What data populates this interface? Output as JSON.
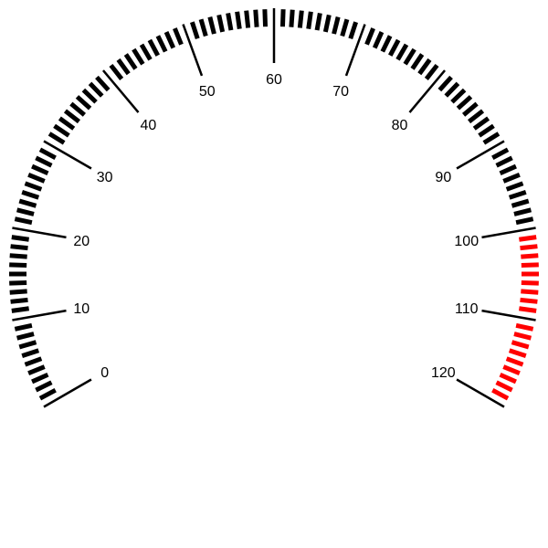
{
  "chart_data": {
    "type": "gauge",
    "min": 0,
    "max": 120,
    "major_step": 10,
    "minor_step": 1,
    "tick_labels": [
      "0",
      "10",
      "20",
      "30",
      "40",
      "50",
      "60",
      "70",
      "80",
      "90",
      "100",
      "110",
      "120"
    ],
    "bands": [
      {
        "from": 100,
        "to": 120,
        "color": "#ff0000"
      }
    ],
    "tick_color": "#000000"
  }
}
